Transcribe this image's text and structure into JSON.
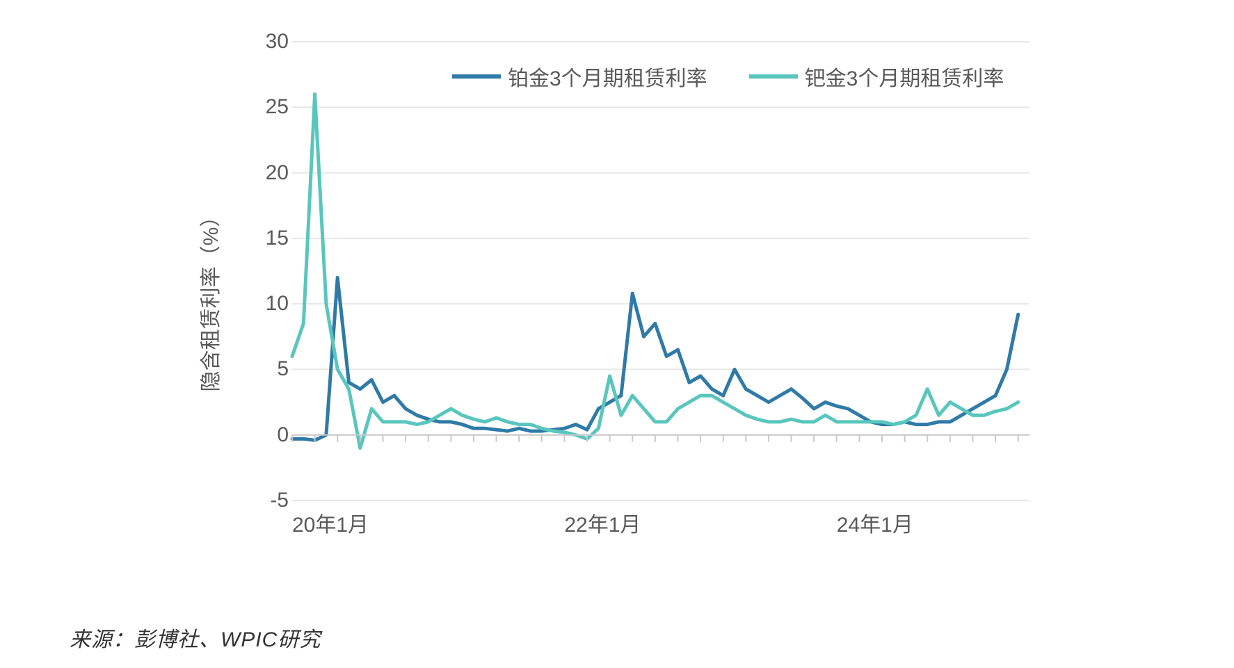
{
  "chart": {
    "type": "line",
    "background_color": "#ffffff",
    "grid_color": "#e6e6e6",
    "axis_color": "#c9c9c9",
    "text_color": "#595959",
    "line_width": 5,
    "y_axis": {
      "label": "隐含租赁利率（%）",
      "min": -5,
      "max": 30,
      "tick_step": 5,
      "ticks": [
        -5,
        0,
        5,
        10,
        15,
        20,
        25,
        30
      ],
      "label_fontsize": 30,
      "tick_fontsize": 30
    },
    "x_axis": {
      "min": 0,
      "max": 65,
      "major_tick_idx": [
        0,
        24,
        48
      ],
      "major_tick_labels": [
        "20年1月",
        "22年1月",
        "24年1月"
      ],
      "label_fontsize": 30
    },
    "legend": {
      "fontsize": 30,
      "items": [
        {
          "label": "铂金3个月期租赁利率",
          "color": "#2f7aa6"
        },
        {
          "label": "钯金3个月期租赁利率",
          "color": "#59c6bd"
        }
      ]
    },
    "series": [
      {
        "name": "铂金3个月期租赁利率",
        "color": "#2f7aa6",
        "data": [
          -0.3,
          -0.3,
          -0.4,
          0.0,
          12.0,
          4.0,
          3.5,
          4.2,
          2.5,
          3.0,
          2.0,
          1.5,
          1.2,
          1.0,
          1.0,
          0.8,
          0.5,
          0.5,
          0.4,
          0.3,
          0.5,
          0.3,
          0.3,
          0.4,
          0.5,
          0.8,
          0.4,
          2.0,
          2.5,
          3.0,
          10.8,
          7.5,
          8.5,
          6.0,
          6.5,
          4.0,
          4.5,
          3.5,
          3.0,
          5.0,
          3.5,
          3.0,
          2.5,
          3.0,
          3.5,
          2.8,
          2.0,
          2.5,
          2.2,
          2.0,
          1.5,
          1.0,
          0.8,
          0.8,
          1.0,
          0.8,
          0.8,
          1.0,
          1.0,
          1.5,
          2.0,
          2.5,
          3.0,
          5.0,
          9.2
        ]
      },
      {
        "name": "钯金3个月期租赁利率",
        "color": "#59c6bd",
        "data": [
          6.0,
          8.5,
          26.0,
          10.0,
          5.0,
          3.5,
          -1.0,
          2.0,
          1.0,
          1.0,
          1.0,
          0.8,
          1.0,
          1.5,
          2.0,
          1.5,
          1.2,
          1.0,
          1.3,
          1.0,
          0.8,
          0.8,
          0.5,
          0.3,
          0.2,
          0.0,
          -0.3,
          0.5,
          4.5,
          1.5,
          3.0,
          2.0,
          1.0,
          1.0,
          2.0,
          2.5,
          3.0,
          3.0,
          2.5,
          2.0,
          1.5,
          1.2,
          1.0,
          1.0,
          1.2,
          1.0,
          1.0,
          1.5,
          1.0,
          1.0,
          1.0,
          1.0,
          1.0,
          0.8,
          1.0,
          1.5,
          3.5,
          1.5,
          2.5,
          2.0,
          1.5,
          1.5,
          1.8,
          2.0,
          2.5
        ]
      }
    ]
  },
  "source": "来源：彭博社、WPIC研究"
}
